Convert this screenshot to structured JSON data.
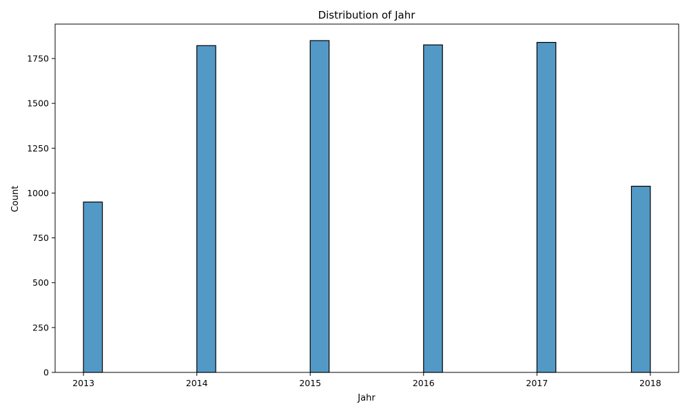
{
  "chart_data": {
    "type": "bar",
    "title": "Distribution of Jahr",
    "xlabel": "Jahr",
    "ylabel": "Count",
    "xlim": [
      2012.75,
      2018.25
    ],
    "ylim": [
      0,
      1942
    ],
    "x_ticks": [
      2013,
      2014,
      2015,
      2016,
      2017,
      2018
    ],
    "y_ticks": [
      0,
      250,
      500,
      750,
      1000,
      1250,
      1500,
      1750
    ],
    "bin_width": 0.1667,
    "bars": [
      {
        "x_start": 2013.0,
        "x_end": 2013.1667,
        "value": 950
      },
      {
        "x_start": 2014.0,
        "x_end": 2014.1667,
        "value": 1822
      },
      {
        "x_start": 2015.0,
        "x_end": 2015.1667,
        "value": 1850
      },
      {
        "x_start": 2016.0,
        "x_end": 2016.1667,
        "value": 1826
      },
      {
        "x_start": 2017.0,
        "x_end": 2017.1667,
        "value": 1840
      },
      {
        "x_start": 2017.8333,
        "x_end": 2018.0,
        "value": 1038
      }
    ],
    "grid": false,
    "legend": "none",
    "colors": {
      "bar": "#5399c6",
      "edge": "#000000"
    }
  }
}
